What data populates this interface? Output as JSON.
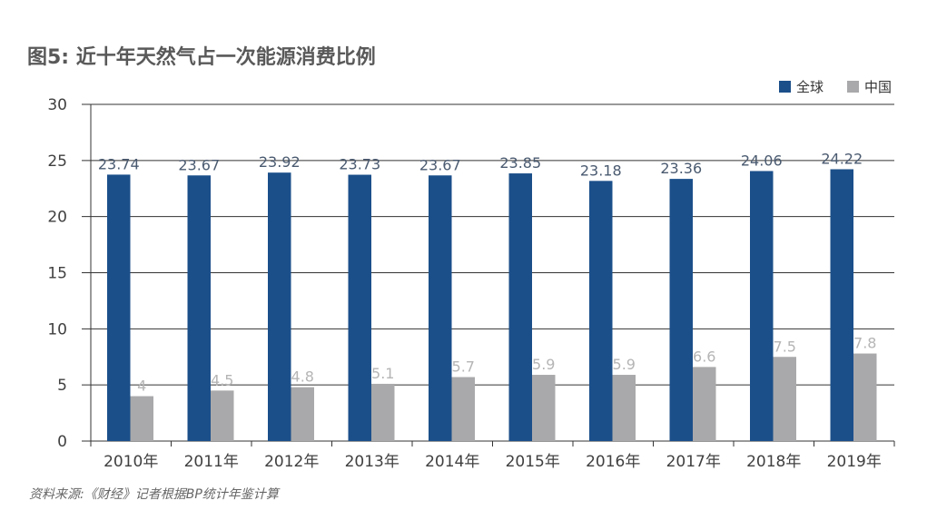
{
  "chart_data": {
    "type": "bar",
    "title": "图5: 近十年天然气占一次能源消费比例",
    "categories": [
      "2010年",
      "2011年",
      "2012年",
      "2013年",
      "2014年",
      "2015年",
      "2016年",
      "2017年",
      "2018年",
      "2019年"
    ],
    "series": [
      {
        "name": "全球",
        "color": "#1b4f8a",
        "label_color": "#4a5a70",
        "values": [
          23.74,
          23.67,
          23.92,
          23.73,
          23.67,
          23.85,
          23.18,
          23.36,
          24.06,
          24.22
        ]
      },
      {
        "name": "中国",
        "color": "#a9a9ab",
        "label_color": "#b5b5b5",
        "values": [
          4,
          4.5,
          4.8,
          5.1,
          5.7,
          5.9,
          5.9,
          6.6,
          7.5,
          7.8
        ]
      }
    ],
    "ylim": [
      0,
      30
    ],
    "yticks": [
      0,
      5,
      10,
      15,
      20,
      25,
      30
    ],
    "grid": true,
    "legend_position": "top-right",
    "source": "资料来源:《财经》记者根据BP统计年鉴计算"
  }
}
